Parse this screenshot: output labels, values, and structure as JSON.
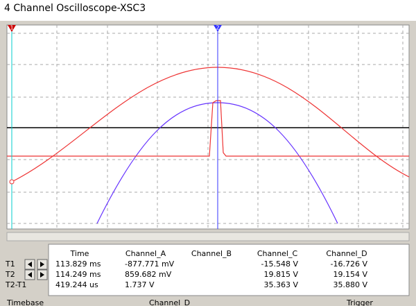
{
  "window": {
    "title": "4 Channel Oscilloscope-XSC3"
  },
  "cursor_markers": [
    "1",
    "2"
  ],
  "readout": {
    "headers": [
      "Time",
      "Channel_A",
      "Channel_B",
      "Channel_C",
      "Channel_D"
    ],
    "rows": [
      {
        "label": "T1",
        "cells": [
          "113.829 ms",
          "-877.771 mV",
          "",
          "-15.548 V",
          "-16.726 V"
        ]
      },
      {
        "label": "T2",
        "cells": [
          "114.249 ms",
          "859.682 mV",
          "",
          "19.815 V",
          "19.154 V"
        ]
      },
      {
        "label": "T2-T1",
        "cells": [
          "419.244 us",
          "1.737 V",
          "",
          "35.363 V",
          "35.880 V"
        ]
      }
    ]
  },
  "sections": [
    "Timebase",
    "Channel_D",
    "Trigger"
  ]
}
